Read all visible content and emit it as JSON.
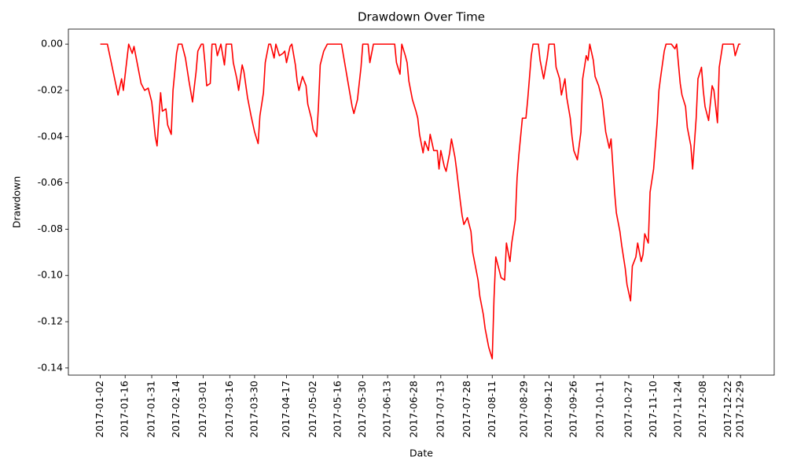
{
  "chart_data": {
    "type": "line",
    "title": "Drawdown Over Time",
    "x_label": "Date",
    "y_label": "Drawdown",
    "xlim": [
      "2016-12-15",
      "2018-01-17"
    ],
    "xticks": [
      "2017-01-02",
      "2017-01-16",
      "2017-01-31",
      "2017-02-14",
      "2017-03-01",
      "2017-03-16",
      "2017-03-30",
      "2017-04-17",
      "2017-05-02",
      "2017-05-16",
      "2017-05-30",
      "2017-06-13",
      "2017-06-28",
      "2017-07-13",
      "2017-07-28",
      "2017-08-11",
      "2017-08-29",
      "2017-09-12",
      "2017-09-26",
      "2017-10-11",
      "2017-10-27",
      "2017-11-10",
      "2017-11-24",
      "2017-12-08",
      "2017-12-22",
      "2017-12-29"
    ],
    "ylim": [
      -0.1431,
      0.0065
    ],
    "yticks": [
      {
        "value": -0.14,
        "label": "-0.14"
      },
      {
        "value": -0.12,
        "label": "-0.12"
      },
      {
        "value": -0.1,
        "label": "-0.10"
      },
      {
        "value": -0.08,
        "label": "-0.08"
      },
      {
        "value": -0.06,
        "label": "-0.06"
      },
      {
        "value": -0.04,
        "label": "-0.04"
      },
      {
        "value": -0.02,
        "label": "-0.02"
      },
      {
        "value": 0.0,
        "label": "0.00"
      }
    ],
    "grid": false,
    "series": [
      {
        "name": "Drawdown",
        "color": "#ff0000",
        "x": [
          "2017-01-02",
          "2017-01-06",
          "2017-01-12",
          "2017-01-14",
          "2017-01-15",
          "2017-01-18",
          "2017-01-20",
          "2017-01-21",
          "2017-01-25",
          "2017-01-27",
          "2017-01-29",
          "2017-01-31",
          "2017-02-02",
          "2017-02-03",
          "2017-02-05",
          "2017-02-06",
          "2017-02-08",
          "2017-02-09",
          "2017-02-11",
          "2017-02-12",
          "2017-02-14",
          "2017-02-15",
          "2017-02-17",
          "2017-02-19",
          "2017-02-21",
          "2017-02-23",
          "2017-02-25",
          "2017-02-26",
          "2017-02-28",
          "2017-03-01",
          "2017-03-02",
          "2017-03-03",
          "2017-03-05",
          "2017-03-06",
          "2017-03-08",
          "2017-03-09",
          "2017-03-11",
          "2017-03-13",
          "2017-03-14",
          "2017-03-17",
          "2017-03-18",
          "2017-03-20",
          "2017-03-21",
          "2017-03-23",
          "2017-03-24",
          "2017-03-26",
          "2017-03-28",
          "2017-03-30",
          "2017-04-01",
          "2017-04-02",
          "2017-04-04",
          "2017-04-05",
          "2017-04-07",
          "2017-04-08",
          "2017-04-10",
          "2017-04-11",
          "2017-04-13",
          "2017-04-15",
          "2017-04-16",
          "2017-04-17",
          "2017-04-19",
          "2017-04-20",
          "2017-04-22",
          "2017-04-23",
          "2017-04-24",
          "2017-04-26",
          "2017-04-28",
          "2017-04-29",
          "2017-05-01",
          "2017-05-02",
          "2017-05-04",
          "2017-05-05",
          "2017-05-06",
          "2017-05-08",
          "2017-05-10",
          "2017-05-18",
          "2017-05-20",
          "2017-05-22",
          "2017-05-24",
          "2017-05-25",
          "2017-05-27",
          "2017-05-29",
          "2017-05-30",
          "2017-06-02",
          "2017-06-03",
          "2017-06-05",
          "2017-06-17",
          "2017-06-18",
          "2017-06-20",
          "2017-06-21",
          "2017-06-23",
          "2017-06-24",
          "2017-06-25",
          "2017-06-27",
          "2017-06-29",
          "2017-06-30",
          "2017-07-01",
          "2017-07-03",
          "2017-07-04",
          "2017-07-06",
          "2017-07-07",
          "2017-07-09",
          "2017-07-11",
          "2017-07-12",
          "2017-07-13",
          "2017-07-15",
          "2017-07-16",
          "2017-07-18",
          "2017-07-19",
          "2017-07-21",
          "2017-07-22",
          "2017-07-24",
          "2017-07-25",
          "2017-07-26",
          "2017-07-28",
          "2017-07-30",
          "2017-07-31",
          "2017-08-02",
          "2017-08-03",
          "2017-08-04",
          "2017-08-06",
          "2017-08-07",
          "2017-08-09",
          "2017-08-11",
          "2017-08-12",
          "2017-08-13",
          "2017-08-15",
          "2017-08-16",
          "2017-08-18",
          "2017-08-19",
          "2017-08-21",
          "2017-08-22",
          "2017-08-24",
          "2017-08-25",
          "2017-08-26",
          "2017-08-28",
          "2017-08-30",
          "2017-08-31",
          "2017-09-02",
          "2017-09-03",
          "2017-09-06",
          "2017-09-07",
          "2017-09-09",
          "2017-09-11",
          "2017-09-12",
          "2017-09-15",
          "2017-09-16",
          "2017-09-18",
          "2017-09-19",
          "2017-09-21",
          "2017-09-22",
          "2017-09-24",
          "2017-09-25",
          "2017-09-26",
          "2017-09-28",
          "2017-09-30",
          "2017-10-01",
          "2017-10-03",
          "2017-10-04",
          "2017-10-05",
          "2017-10-07",
          "2017-10-08",
          "2017-10-10",
          "2017-10-12",
          "2017-10-13",
          "2017-10-14",
          "2017-10-16",
          "2017-10-17",
          "2017-10-19",
          "2017-10-20",
          "2017-10-22",
          "2017-10-23",
          "2017-10-25",
          "2017-10-26",
          "2017-10-28",
          "2017-10-29",
          "2017-10-31",
          "2017-11-01",
          "2017-11-03",
          "2017-11-04",
          "2017-11-05",
          "2017-11-07",
          "2017-11-08",
          "2017-11-10",
          "2017-11-12",
          "2017-11-13",
          "2017-11-14",
          "2017-11-16",
          "2017-11-17",
          "2017-11-20",
          "2017-11-22",
          "2017-11-23",
          "2017-11-25",
          "2017-11-26",
          "2017-11-28",
          "2017-11-29",
          "2017-12-01",
          "2017-12-02",
          "2017-12-04",
          "2017-12-05",
          "2017-12-07",
          "2017-12-08",
          "2017-12-09",
          "2017-12-11",
          "2017-12-13",
          "2017-12-14",
          "2017-12-16",
          "2017-12-17",
          "2017-12-19",
          "2017-12-25",
          "2017-12-26",
          "2017-12-28",
          "2017-12-29"
        ],
        "values": [
          0,
          0,
          -0.022,
          -0.015,
          -0.02,
          0,
          -0.004,
          -0.001,
          -0.017,
          -0.02,
          -0.019,
          -0.025,
          -0.04,
          -0.044,
          -0.021,
          -0.029,
          -0.028,
          -0.035,
          -0.039,
          -0.02,
          -0.004,
          0,
          0,
          -0.006,
          -0.016,
          -0.025,
          -0.012,
          -0.003,
          0,
          0,
          -0.008,
          -0.018,
          -0.017,
          0,
          0,
          -0.005,
          0,
          -0.009,
          0,
          0,
          -0.008,
          -0.015,
          -0.02,
          -0.009,
          -0.012,
          -0.023,
          -0.031,
          -0.038,
          -0.043,
          -0.031,
          -0.021,
          -0.008,
          0,
          0,
          -0.006,
          0,
          -0.005,
          -0.004,
          -0.003,
          -0.008,
          -0.001,
          0,
          -0.009,
          -0.016,
          -0.02,
          -0.014,
          -0.018,
          -0.026,
          -0.032,
          -0.037,
          -0.04,
          -0.027,
          -0.009,
          -0.003,
          0,
          0,
          -0.009,
          -0.018,
          -0.027,
          -0.03,
          -0.024,
          -0.01,
          0,
          0,
          -0.008,
          0,
          0,
          -0.008,
          -0.013,
          0,
          -0.005,
          -0.008,
          -0.016,
          -0.024,
          -0.029,
          -0.032,
          -0.039,
          -0.047,
          -0.042,
          -0.046,
          -0.039,
          -0.046,
          -0.046,
          -0.054,
          -0.046,
          -0.053,
          -0.055,
          -0.047,
          -0.041,
          -0.049,
          -0.055,
          -0.068,
          -0.074,
          -0.078,
          -0.075,
          -0.081,
          -0.09,
          -0.098,
          -0.102,
          -0.109,
          -0.117,
          -0.123,
          -0.131,
          -0.136,
          -0.11,
          -0.092,
          -0.098,
          -0.101,
          -0.102,
          -0.086,
          -0.094,
          -0.086,
          -0.076,
          -0.058,
          -0.048,
          -0.032,
          -0.032,
          -0.024,
          -0.005,
          0,
          0,
          -0.007,
          -0.015,
          -0.006,
          0,
          0,
          -0.01,
          -0.015,
          -0.022,
          -0.015,
          -0.023,
          -0.032,
          -0.04,
          -0.046,
          -0.05,
          -0.038,
          -0.015,
          -0.005,
          -0.007,
          0,
          -0.007,
          -0.014,
          -0.018,
          -0.024,
          -0.031,
          -0.038,
          -0.045,
          -0.041,
          -0.064,
          -0.073,
          -0.081,
          -0.087,
          -0.097,
          -0.104,
          -0.111,
          -0.096,
          -0.092,
          -0.086,
          -0.094,
          -0.091,
          -0.082,
          -0.086,
          -0.064,
          -0.054,
          -0.034,
          -0.02,
          -0.014,
          -0.003,
          0,
          0,
          -0.002,
          0,
          -0.017,
          -0.022,
          -0.027,
          -0.036,
          -0.044,
          -0.054,
          -0.032,
          -0.015,
          -0.01,
          -0.02,
          -0.027,
          -0.033,
          -0.018,
          -0.02,
          -0.034,
          -0.01,
          0,
          0,
          -0.005,
          0,
          0
        ]
      }
    ]
  }
}
